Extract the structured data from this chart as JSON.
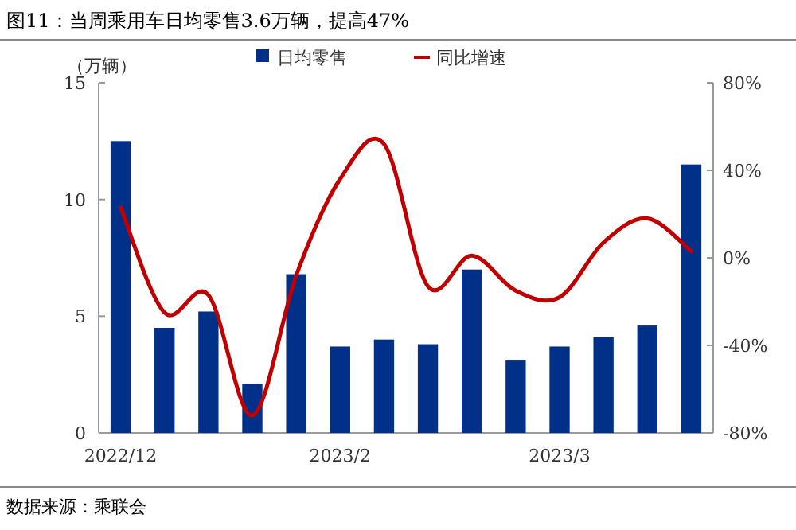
{
  "chart_data": {
    "type": "bar",
    "title": "图11：当周乘用车日均零售3.6万辆，提高47%",
    "ylabel": "（万辆）",
    "categories": [
      "2022/12",
      null,
      null,
      null,
      null,
      "2023/2",
      null,
      null,
      null,
      null,
      "2023/3",
      null,
      null,
      null
    ],
    "series": [
      {
        "name": "日均零售",
        "color": "#003087",
        "values": [
          12.5,
          4.5,
          5.2,
          2.1,
          6.8,
          3.7,
          4.0,
          3.8,
          7.0,
          3.1,
          3.7,
          4.1,
          4.6,
          11.5
        ]
      },
      {
        "name": "同比增速",
        "type": "line",
        "axis": "y2",
        "color": "#c00000",
        "values": [
          23,
          -25,
          -17,
          -72,
          -8,
          36,
          52,
          -13,
          1,
          -15,
          -18,
          7,
          18,
          3
        ]
      }
    ],
    "ylim": [
      0,
      15
    ],
    "yticks": [
      0,
      5,
      10,
      15
    ],
    "y2lim": [
      -80,
      80
    ],
    "y2ticks": [
      {
        "value": -80,
        "label": "-80%"
      },
      {
        "value": -40,
        "label": "-40%"
      },
      {
        "value": 0,
        "label": "0%"
      },
      {
        "value": 40,
        "label": "40%"
      },
      {
        "value": 80,
        "label": "80%"
      }
    ],
    "legend": "top",
    "annotations": [
      "数据来源：乘联会"
    ]
  }
}
